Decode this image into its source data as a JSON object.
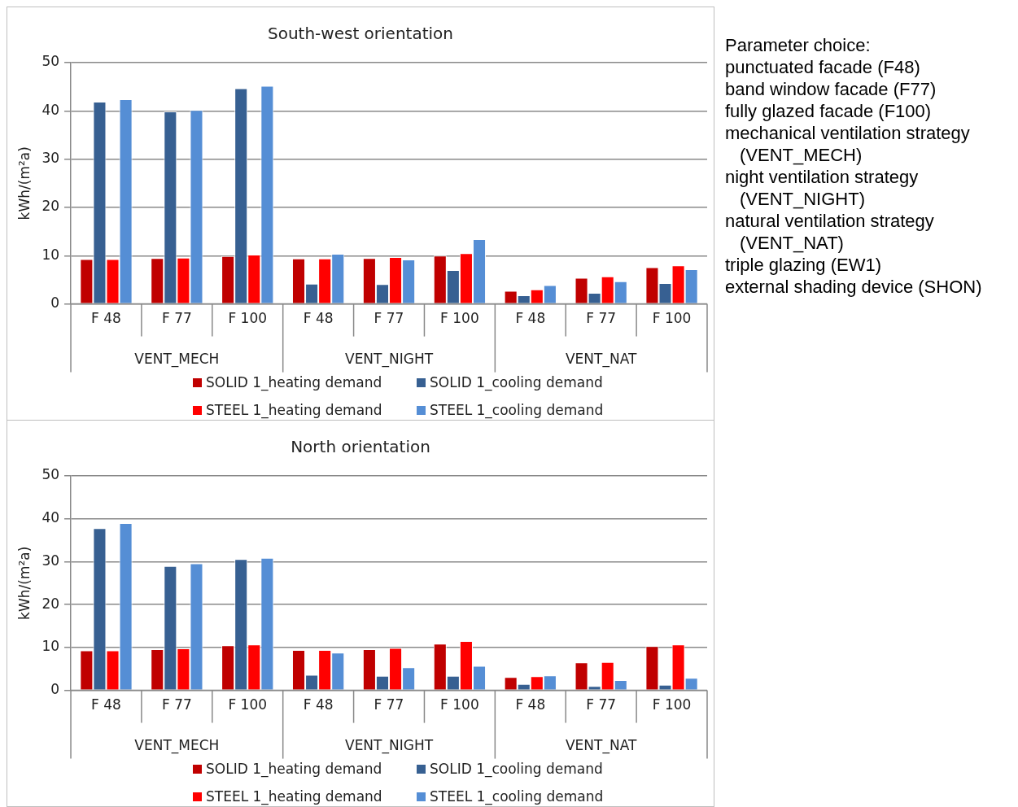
{
  "chart_data": [
    {
      "type": "bar",
      "title": "South-west orientation",
      "ylabel": "kWh/(m²a)",
      "categories": [
        "F 48",
        "F 77",
        "F 100",
        "F 48",
        "F 77",
        "F 100",
        "F 48",
        "F 77",
        "F 100"
      ],
      "annotations": [
        "VENT_MECH",
        "VENT_NIGHT",
        "VENT_NAT"
      ],
      "ylim": [
        0,
        50
      ],
      "yticks": [
        0,
        10,
        20,
        30,
        40,
        50
      ],
      "grid": "y",
      "legend": "bottom",
      "series": [
        {
          "name": "SOLID 1_heating demand",
          "color": "#c00000",
          "values": [
            9.3,
            9.5,
            9.9,
            9.4,
            9.5,
            10.0,
            2.7,
            5.4,
            7.6
          ]
        },
        {
          "name": "SOLID 1_cooling demand",
          "color": "#376092",
          "values": [
            41.9,
            39.9,
            44.7,
            4.2,
            4.1,
            7.0,
            1.8,
            2.3,
            4.3
          ]
        },
        {
          "name": "STEEL 1_heating demand",
          "color": "#ff0000",
          "values": [
            9.3,
            9.6,
            10.2,
            9.4,
            9.7,
            10.5,
            3.0,
            5.7,
            8.0
          ]
        },
        {
          "name": "STEEL 1_cooling demand",
          "color": "#558ed5",
          "values": [
            42.4,
            40.2,
            45.2,
            10.4,
            9.2,
            13.4,
            3.9,
            4.7,
            7.2
          ]
        }
      ]
    },
    {
      "type": "other",
      "title": "Parameter choice:",
      "annotations": [
        "punctuated facade (F48)",
        "band window facade (F77)",
        "fully glazed facade (F100)",
        "mechanical ventilation strategy (VENT_MECH)",
        "night ventilation strategy (VENT_NIGHT)",
        "natural ventilation strategy (VENT_NAT)",
        "triple glazing (EW1)",
        "external shading device (SHON)"
      ]
    },
    {
      "type": "bar",
      "title": "North orientation",
      "ylabel": "kWh/(m²a)",
      "categories": [
        "F 48",
        "F 77",
        "F 100",
        "F 48",
        "F 77",
        "F 100",
        "F 48",
        "F 77",
        "F 100"
      ],
      "annotations": [
        "VENT_MECH",
        "VENT_NIGHT",
        "VENT_NAT"
      ],
      "ylim": [
        0,
        50
      ],
      "yticks": [
        0,
        10,
        20,
        30,
        40,
        50
      ],
      "grid": "y",
      "legend": "bottom",
      "series": [
        {
          "name": "SOLID 1_heating demand",
          "color": "#c00000",
          "values": [
            9.3,
            9.6,
            10.5,
            9.4,
            9.6,
            10.9,
            3.1,
            6.5,
            10.3
          ]
        },
        {
          "name": "SOLID 1_cooling demand",
          "color": "#376092",
          "values": [
            37.8,
            29.0,
            30.6,
            3.6,
            3.4,
            3.4,
            1.5,
            1.0,
            1.3
          ]
        },
        {
          "name": "STEEL 1_heating demand",
          "color": "#ff0000",
          "values": [
            9.3,
            9.8,
            10.7,
            9.4,
            9.9,
            11.5,
            3.3,
            6.6,
            10.7
          ]
        },
        {
          "name": "STEEL 1_cooling demand",
          "color": "#558ed5",
          "values": [
            39.0,
            29.6,
            30.9,
            8.8,
            5.4,
            5.7,
            3.5,
            2.4,
            2.9
          ]
        }
      ]
    }
  ]
}
